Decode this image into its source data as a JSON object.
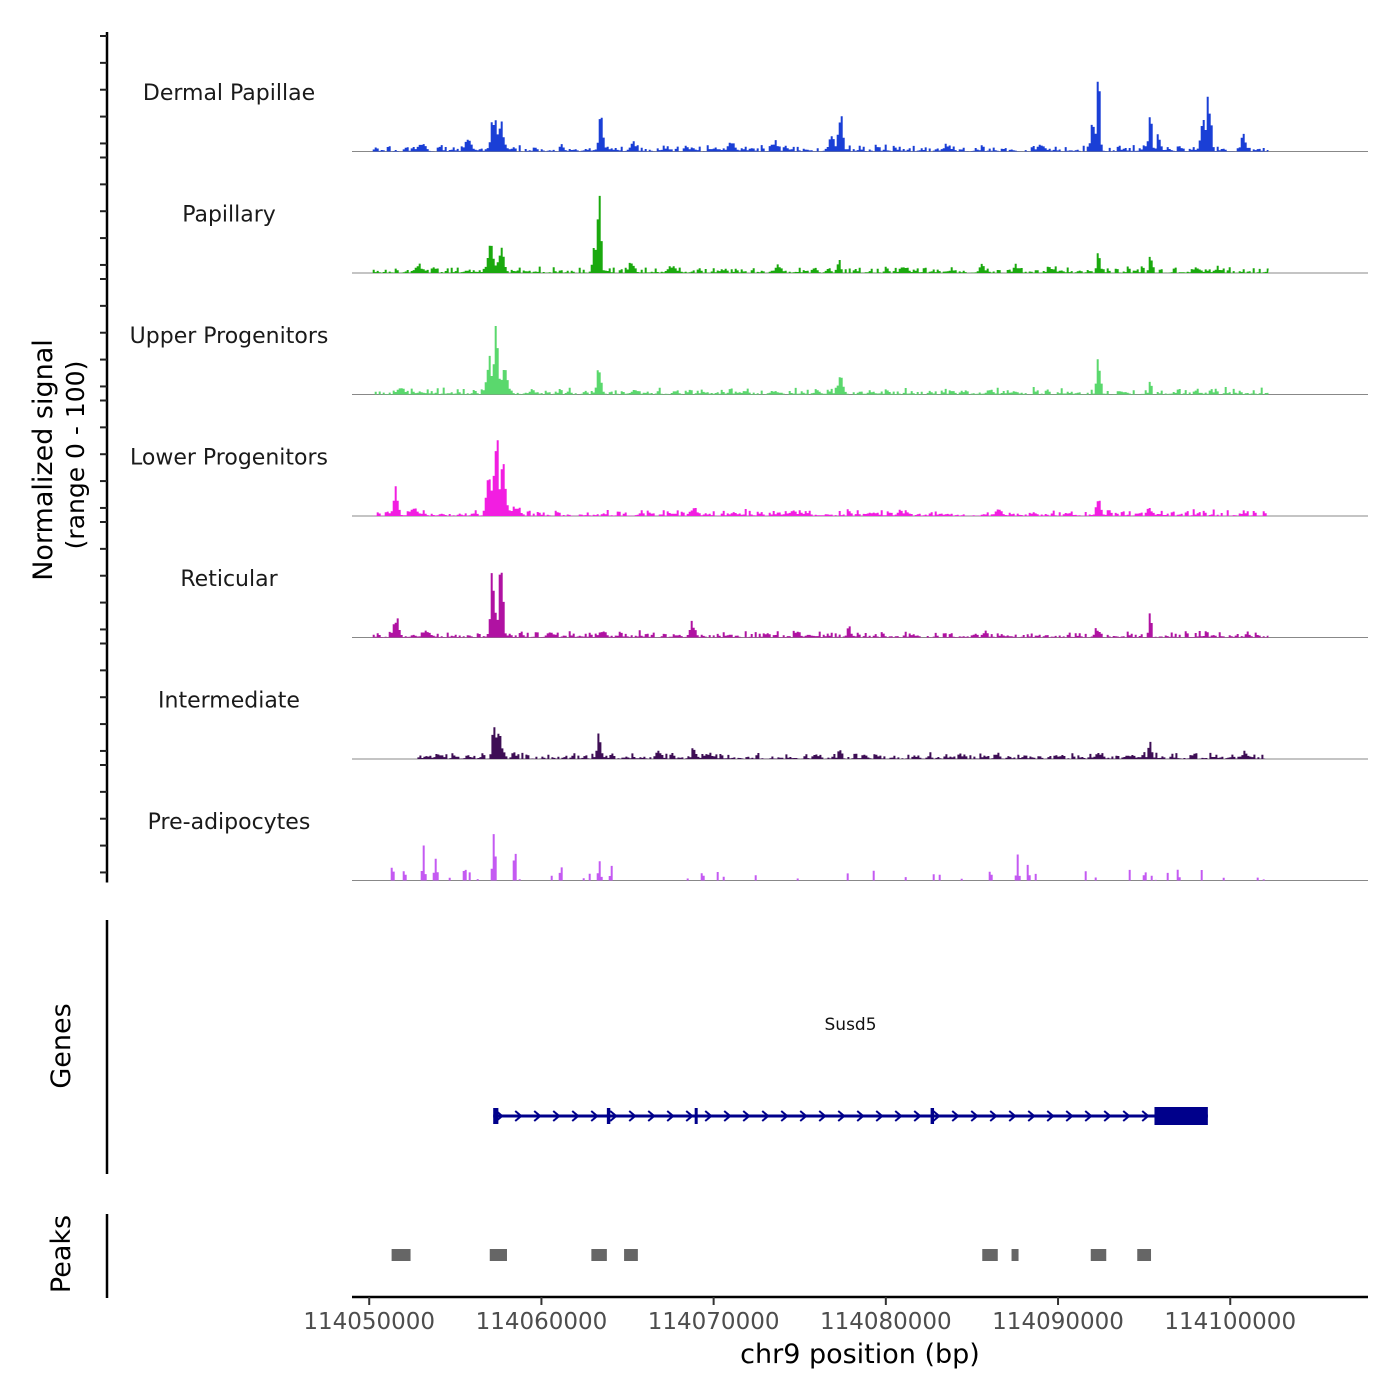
{
  "chart_data": {
    "type": "area",
    "ylabel": "Normalized signal",
    "ylabel_range": "(range 0 - 100)",
    "xlabel": "chr9 position (bp)",
    "xlim": [
      114049000,
      114108000
    ],
    "x_ticks": [
      114050000,
      114060000,
      114070000,
      114080000,
      114090000,
      114100000
    ],
    "x_tick_labels": [
      "114050000",
      "114060000",
      "114070000",
      "114080000",
      "114090000",
      "114100000"
    ],
    "signal_range": [
      0,
      100
    ],
    "tracks": [
      {
        "name": "Dermal Papillae",
        "color": "#1a3fd6",
        "coverage": [
          114050200,
          114102200
        ],
        "peaks": [
          [
            114057200,
            40,
            260
          ],
          [
            114057600,
            38,
            200
          ],
          [
            114063400,
            45,
            180
          ],
          [
            114065300,
            14,
            150
          ],
          [
            114077300,
            40,
            200
          ],
          [
            114076800,
            18,
            200
          ],
          [
            114092300,
            100,
            110
          ],
          [
            114092000,
            35,
            200
          ],
          [
            114095300,
            40,
            130
          ],
          [
            114095800,
            20,
            150
          ],
          [
            114098700,
            65,
            170
          ],
          [
            114098400,
            30,
            250
          ],
          [
            114100700,
            18,
            200
          ],
          [
            114053000,
            10,
            300
          ],
          [
            114055700,
            12,
            300
          ],
          [
            114071000,
            10,
            300
          ],
          [
            114073500,
            12,
            250
          ],
          [
            114083500,
            8,
            300
          ],
          [
            114089000,
            8,
            300
          ]
        ]
      },
      {
        "name": "Papillary",
        "color": "#1aa90e",
        "coverage": [
          114050200,
          114102200
        ],
        "peaks": [
          [
            114063300,
            100,
            140
          ],
          [
            114063100,
            35,
            200
          ],
          [
            114057000,
            28,
            280
          ],
          [
            114057600,
            24,
            240
          ],
          [
            114065200,
            15,
            200
          ],
          [
            114077200,
            16,
            150
          ],
          [
            114092300,
            25,
            140
          ],
          [
            114095300,
            28,
            100
          ],
          [
            114052800,
            10,
            300
          ],
          [
            114067500,
            8,
            300
          ],
          [
            114073700,
            10,
            250
          ],
          [
            114081000,
            8,
            300
          ],
          [
            114085500,
            10,
            200
          ],
          [
            114087500,
            9,
            200
          ],
          [
            114098000,
            7,
            300
          ]
        ]
      },
      {
        "name": "Upper Progenitors",
        "color": "#5ad86d",
        "coverage": [
          114050200,
          114102200
        ],
        "peaks": [
          [
            114057300,
            63,
            220
          ],
          [
            114056900,
            40,
            220
          ],
          [
            114057800,
            25,
            260
          ],
          [
            114063300,
            30,
            170
          ],
          [
            114077300,
            18,
            240
          ],
          [
            114092300,
            40,
            150
          ],
          [
            114095300,
            18,
            100
          ],
          [
            114051800,
            8,
            300
          ],
          [
            114065300,
            6,
            200
          ],
          [
            114073500,
            5,
            300
          ],
          [
            114086000,
            5,
            300
          ]
        ]
      },
      {
        "name": "Lower Progenitors",
        "color": "#f21ee1",
        "coverage": [
          114050200,
          114102200
        ],
        "peaks": [
          [
            114057300,
            85,
            230
          ],
          [
            114057700,
            70,
            220
          ],
          [
            114056900,
            40,
            220
          ],
          [
            114051500,
            33,
            180
          ],
          [
            114052500,
            10,
            300
          ],
          [
            114058500,
            12,
            300
          ],
          [
            114068800,
            9,
            300
          ],
          [
            114092300,
            22,
            180
          ],
          [
            114095300,
            8,
            200
          ],
          [
            114080800,
            8,
            200
          ],
          [
            114074500,
            6,
            300
          ],
          [
            114086500,
            6,
            300
          ]
        ]
      },
      {
        "name": "Reticular",
        "color": "#b012a2",
        "coverage": [
          114050200,
          114102200
        ],
        "peaks": [
          [
            114057100,
            75,
            170
          ],
          [
            114057600,
            78,
            160
          ],
          [
            114051500,
            22,
            220
          ],
          [
            114068700,
            16,
            220
          ],
          [
            114095300,
            26,
            100
          ],
          [
            114092200,
            10,
            200
          ],
          [
            114077800,
            12,
            150
          ],
          [
            114063500,
            9,
            250
          ],
          [
            114085700,
            8,
            200
          ],
          [
            114053300,
            8,
            300
          ],
          [
            114060500,
            6,
            300
          ]
        ]
      },
      {
        "name": "Intermediate",
        "color": "#3e0e55",
        "coverage": [
          114052800,
          114102000
        ],
        "peaks": [
          [
            114057200,
            43,
            160
          ],
          [
            114057500,
            25,
            250
          ],
          [
            114063300,
            27,
            170
          ],
          [
            114068800,
            15,
            150
          ],
          [
            114077300,
            12,
            150
          ],
          [
            114095300,
            22,
            150
          ],
          [
            114092300,
            8,
            200
          ],
          [
            114100800,
            10,
            200
          ],
          [
            114066800,
            9,
            200
          ],
          [
            114054000,
            6,
            300
          ],
          [
            114086400,
            7,
            200
          ]
        ]
      },
      {
        "name": "Pre-adipocytes",
        "color": "#c45af2",
        "coverage": [
          114050200,
          114102200
        ],
        "peaks": [
          [
            114057200,
            50,
            120
          ],
          [
            114058400,
            45,
            100
          ],
          [
            114053100,
            35,
            100
          ],
          [
            114053800,
            30,
            100
          ],
          [
            114051300,
            20,
            100
          ],
          [
            114052000,
            12,
            100
          ],
          [
            114055500,
            15,
            100
          ],
          [
            114061100,
            20,
            100
          ],
          [
            114063300,
            25,
            100
          ],
          [
            114064000,
            15,
            100
          ],
          [
            114087600,
            25,
            100
          ],
          [
            114088200,
            15,
            100
          ],
          [
            114086000,
            12,
            100
          ],
          [
            114069300,
            10,
            100
          ],
          [
            114095000,
            12,
            100
          ],
          [
            114096900,
            12,
            100
          ]
        ]
      }
    ],
    "genes": [
      {
        "name": "Susd5",
        "color": "#00008b",
        "strand": "+",
        "start": 114057200,
        "end": 114098700,
        "exons": [
          [
            114057200,
            114057500
          ],
          [
            114063800,
            114064000
          ],
          [
            114068900,
            114069000
          ],
          [
            114082600,
            114082800
          ],
          [
            114095600,
            114098700
          ]
        ]
      }
    ],
    "peaks_label": "Peaks",
    "genes_label": "Genes",
    "peak_color": "#666666",
    "peak_regions": [
      [
        114051300,
        114052400
      ],
      [
        114057000,
        114058000
      ],
      [
        114062900,
        114063800
      ],
      [
        114064800,
        114065600
      ],
      [
        114085600,
        114086500
      ],
      [
        114087300,
        114087700
      ],
      [
        114091900,
        114092800
      ],
      [
        114094600,
        114095400
      ]
    ]
  }
}
